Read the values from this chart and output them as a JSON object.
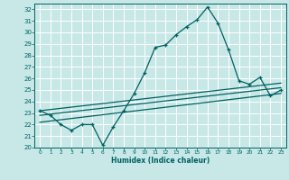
{
  "xlabel": "Humidex (Indice chaleur)",
  "background_color": "#c8e8e8",
  "grid_color": "#ffffff",
  "line_color": "#006060",
  "xlim": [
    -0.5,
    23.5
  ],
  "ylim": [
    20,
    32.5
  ],
  "xticks": [
    0,
    1,
    2,
    3,
    4,
    5,
    6,
    7,
    8,
    9,
    10,
    11,
    12,
    13,
    14,
    15,
    16,
    17,
    18,
    19,
    20,
    21,
    22,
    23
  ],
  "yticks": [
    20,
    21,
    22,
    23,
    24,
    25,
    26,
    27,
    28,
    29,
    30,
    31,
    32
  ],
  "line_main_x": [
    0,
    1,
    2,
    3,
    4,
    5,
    6,
    7,
    8,
    9,
    10,
    11,
    12,
    13,
    14,
    15,
    16,
    17,
    18,
    19,
    20,
    21,
    22,
    23
  ],
  "line_main_y": [
    23.2,
    22.8,
    22.0,
    21.5,
    22.0,
    22.0,
    20.2,
    21.8,
    23.2,
    24.7,
    26.5,
    28.7,
    28.9,
    29.8,
    30.5,
    31.1,
    32.2,
    30.8,
    28.5,
    25.8,
    25.5,
    26.1,
    24.5,
    25.0
  ],
  "line2_x": [
    0,
    23
  ],
  "line2_y": [
    22.2,
    24.7
  ],
  "line3_x": [
    0,
    23
  ],
  "line3_y": [
    22.8,
    25.2
  ],
  "line4_x": [
    0,
    23
  ],
  "line4_y": [
    23.2,
    25.6
  ]
}
